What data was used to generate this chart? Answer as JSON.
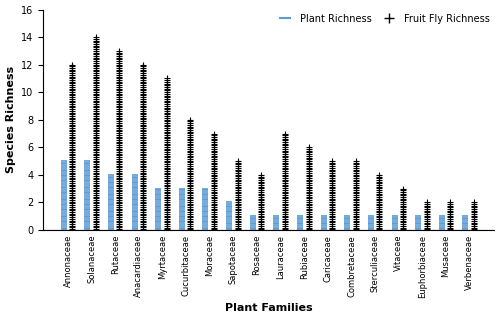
{
  "categories": [
    "Annonaceae",
    "Solanaceae",
    "Rutaceae",
    "Anacardiaceae",
    "Myrtaceae",
    "Cucurbitaceae",
    "Moraceae",
    "Sapotaceae",
    "Rosaceae",
    "Lauraceae",
    "Rubiaceae",
    "Caricaceae",
    "Combretaceae",
    "Sterculiaceae",
    "Vitaceae",
    "Euphorbiaceae",
    "Musaceae",
    "Verbenaceae"
  ],
  "plant_richness": [
    5,
    5,
    4,
    4,
    3,
    3,
    3,
    2,
    1,
    1,
    1,
    1,
    1,
    1,
    1,
    1,
    1,
    1
  ],
  "fly_richness": [
    12,
    14,
    13,
    12,
    11,
    8,
    7,
    5,
    4,
    7,
    6,
    5,
    5,
    4,
    3,
    2,
    2,
    2
  ],
  "bar_color_plant": "#5B9BD5",
  "ylim": [
    0,
    16
  ],
  "yticks": [
    0,
    2,
    4,
    6,
    8,
    10,
    12,
    14,
    16
  ],
  "ylabel": "Species Richness",
  "xlabel": "Plant Families",
  "legend_plant": "Plant Richness",
  "legend_fly": "Fruit Fly Richness",
  "figsize": [
    5.0,
    3.19
  ],
  "dpi": 100
}
